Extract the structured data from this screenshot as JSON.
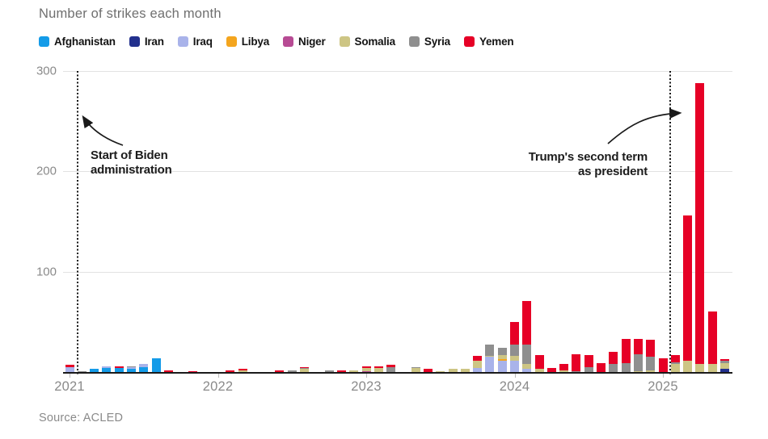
{
  "title": "Number of strikes each month",
  "source": "Source: ACLED",
  "annotations": {
    "biden": {
      "line1": "Start of Biden",
      "line2": "administration"
    },
    "trump": {
      "line1": "Trump's second term",
      "line2": "as president"
    }
  },
  "legend": [
    {
      "id": "afghanistan",
      "label": "Afghanistan",
      "color": "#149be8"
    },
    {
      "id": "iran",
      "label": "Iran",
      "color": "#22308d"
    },
    {
      "id": "iraq",
      "label": "Iraq",
      "color": "#a9b3ea"
    },
    {
      "id": "libya",
      "label": "Libya",
      "color": "#f4a51e"
    },
    {
      "id": "niger",
      "label": "Niger",
      "color": "#b74b94"
    },
    {
      "id": "somalia",
      "label": "Somalia",
      "color": "#cdc584"
    },
    {
      "id": "syria",
      "label": "Syria",
      "color": "#8f8f8f"
    },
    {
      "id": "yemen",
      "label": "Yemen",
      "color": "#e60026"
    }
  ],
  "chart_data": {
    "type": "bar",
    "stacked": true,
    "title": "Number of strikes each month",
    "xlabel": "",
    "ylabel": "",
    "ylim": [
      0,
      300
    ],
    "y_ticks": [
      100,
      200,
      300
    ],
    "grid": true,
    "legend_position": "top",
    "x_year_ticks": [
      {
        "month_index": 0,
        "label": "2021"
      },
      {
        "month_index": 12,
        "label": "2022"
      },
      {
        "month_index": 24,
        "label": "2023"
      },
      {
        "month_index": 36,
        "label": "2024"
      },
      {
        "month_index": 48,
        "label": "2025"
      }
    ],
    "stack_order": [
      "afghanistan",
      "iran",
      "iraq",
      "libya",
      "niger",
      "somalia",
      "syria",
      "yemen"
    ],
    "months": [
      {
        "month": "2021-01",
        "values": {
          "iraq": 5,
          "yemen": 2
        }
      },
      {
        "month": "2021-02",
        "values": {
          "syria": 1
        }
      },
      {
        "month": "2021-03",
        "values": {
          "afghanistan": 3
        }
      },
      {
        "month": "2021-04",
        "values": {
          "afghanistan": 4,
          "iraq": 2
        }
      },
      {
        "month": "2021-05",
        "values": {
          "afghanistan": 4,
          "yemen": 2
        }
      },
      {
        "month": "2021-06",
        "values": {
          "afghanistan": 3,
          "iraq": 2,
          "syria": 1
        }
      },
      {
        "month": "2021-07",
        "values": {
          "afghanistan": 5,
          "iraq": 3
        }
      },
      {
        "month": "2021-08",
        "values": {
          "afghanistan": 14
        }
      },
      {
        "month": "2021-09",
        "values": {
          "yemen": 2
        }
      },
      {
        "month": "2021-10",
        "values": {}
      },
      {
        "month": "2021-11",
        "values": {
          "yemen": 1
        }
      },
      {
        "month": "2021-12",
        "values": {}
      },
      {
        "month": "2022-01",
        "values": {}
      },
      {
        "month": "2022-02",
        "values": {
          "yemen": 2
        }
      },
      {
        "month": "2022-03",
        "values": {
          "somalia": 2,
          "yemen": 1
        }
      },
      {
        "month": "2022-04",
        "values": {}
      },
      {
        "month": "2022-05",
        "values": {}
      },
      {
        "month": "2022-06",
        "values": {
          "yemen": 2
        }
      },
      {
        "month": "2022-07",
        "values": {
          "syria": 2
        }
      },
      {
        "month": "2022-08",
        "values": {
          "somalia": 3,
          "syria": 1,
          "yemen": 1
        }
      },
      {
        "month": "2022-09",
        "values": {}
      },
      {
        "month": "2022-10",
        "values": {
          "syria": 2
        }
      },
      {
        "month": "2022-11",
        "values": {
          "yemen": 2
        }
      },
      {
        "month": "2022-12",
        "values": {
          "somalia": 2
        }
      },
      {
        "month": "2023-01",
        "values": {
          "niger": 1,
          "somalia": 3,
          "yemen": 2
        }
      },
      {
        "month": "2023-02",
        "values": {
          "somalia": 4,
          "yemen": 2
        }
      },
      {
        "month": "2023-03",
        "values": {
          "syria": 5,
          "yemen": 2
        }
      },
      {
        "month": "2023-04",
        "values": {}
      },
      {
        "month": "2023-05",
        "values": {
          "somalia": 4,
          "syria": 1
        }
      },
      {
        "month": "2023-06",
        "values": {
          "yemen": 3
        }
      },
      {
        "month": "2023-07",
        "values": {
          "somalia": 1
        }
      },
      {
        "month": "2023-08",
        "values": {
          "somalia": 3
        }
      },
      {
        "month": "2023-09",
        "values": {
          "somalia": 3
        }
      },
      {
        "month": "2023-10",
        "values": {
          "iraq": 4,
          "somalia": 7,
          "yemen": 5
        }
      },
      {
        "month": "2023-11",
        "values": {
          "iraq": 15,
          "somalia": 1,
          "syria": 11
        }
      },
      {
        "month": "2023-12",
        "values": {
          "iraq": 11,
          "libya": 2,
          "somalia": 4,
          "syria": 7
        }
      },
      {
        "month": "2024-01",
        "values": {
          "iraq": 11,
          "somalia": 5,
          "syria": 11,
          "yemen": 23
        }
      },
      {
        "month": "2024-02",
        "values": {
          "iraq": 3,
          "somalia": 5,
          "syria": 19,
          "yemen": 44
        }
      },
      {
        "month": "2024-03",
        "values": {
          "somalia": 3,
          "yemen": 14
        }
      },
      {
        "month": "2024-04",
        "values": {
          "yemen": 4
        }
      },
      {
        "month": "2024-05",
        "values": {
          "somalia": 2,
          "yemen": 6
        }
      },
      {
        "month": "2024-06",
        "values": {
          "syria": 1,
          "yemen": 17
        }
      },
      {
        "month": "2024-07",
        "values": {
          "syria": 5,
          "yemen": 12
        }
      },
      {
        "month": "2024-08",
        "values": {
          "yemen": 9
        }
      },
      {
        "month": "2024-09",
        "values": {
          "syria": 8,
          "yemen": 12
        }
      },
      {
        "month": "2024-10",
        "values": {
          "syria": 9,
          "yemen": 24
        }
      },
      {
        "month": "2024-11",
        "values": {
          "somalia": 1,
          "syria": 17,
          "yemen": 15
        }
      },
      {
        "month": "2024-12",
        "values": {
          "somalia": 2,
          "syria": 13,
          "yemen": 17
        }
      },
      {
        "month": "2025-01",
        "values": {
          "yemen": 14
        }
      },
      {
        "month": "2025-02",
        "values": {
          "somalia": 8,
          "syria": 2,
          "yemen": 7
        }
      },
      {
        "month": "2025-03",
        "values": {
          "somalia": 11,
          "yemen": 145
        }
      },
      {
        "month": "2025-04",
        "values": {
          "somalia": 8,
          "yemen": 280
        }
      },
      {
        "month": "2025-05",
        "values": {
          "somalia": 8,
          "yemen": 52
        }
      },
      {
        "month": "2025-06",
        "values": {
          "iran": 3,
          "somalia": 6,
          "syria": 2,
          "yemen": 2
        }
      }
    ]
  }
}
